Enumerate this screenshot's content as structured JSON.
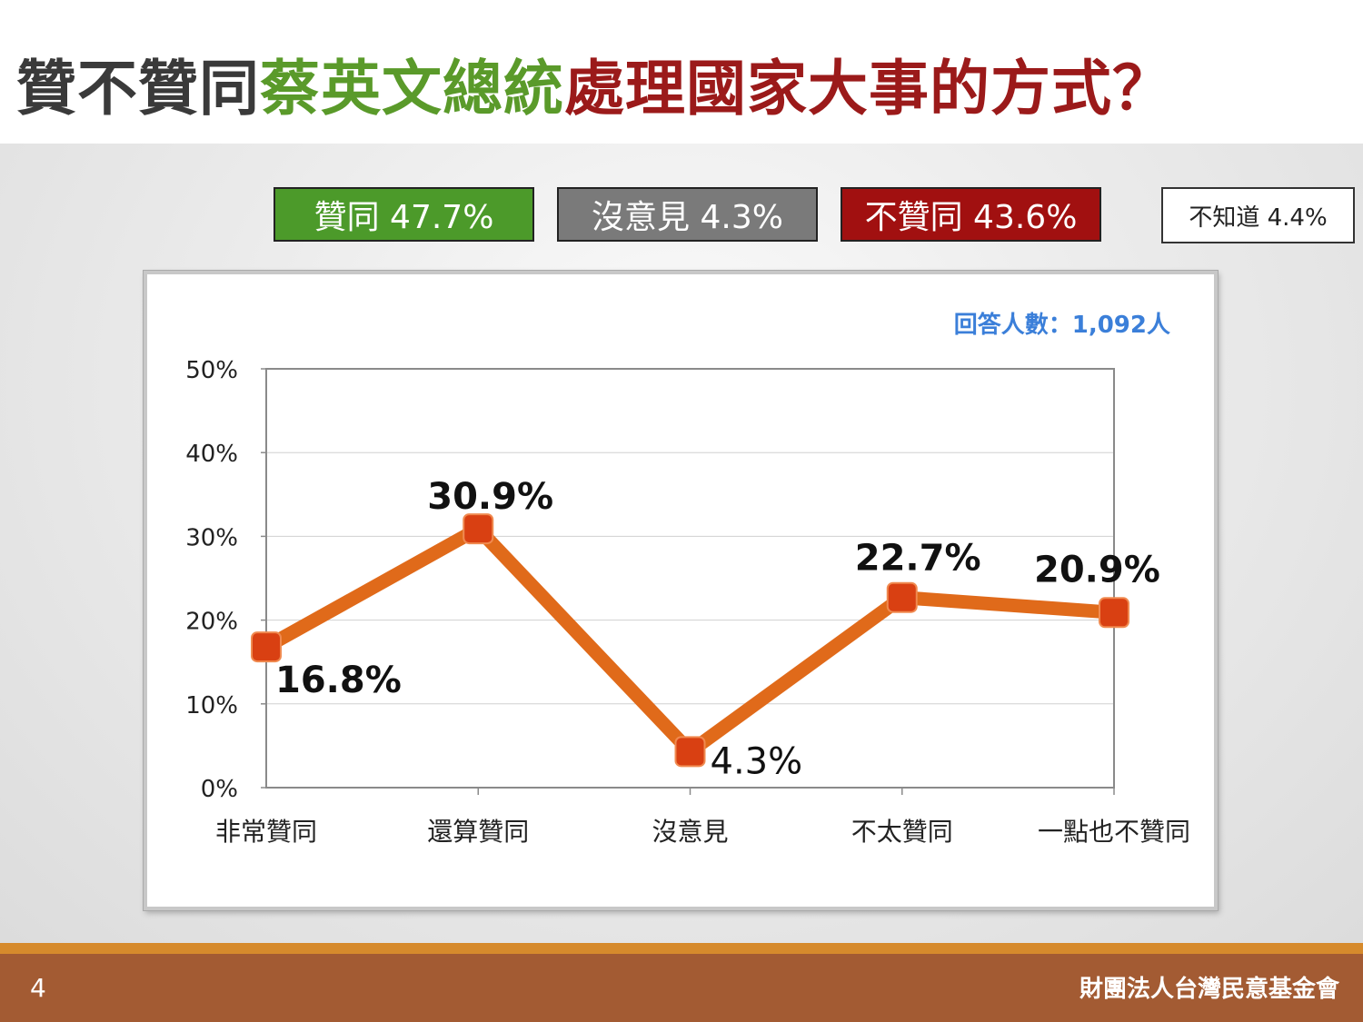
{
  "title": {
    "part1": "贊不贊同",
    "part2": "蔡英文總統",
    "part3": "處理國家大事的方式？",
    "color1": "#3a3a3a",
    "color2": "#5a9a2a",
    "color3": "#9b1a1a"
  },
  "summary": {
    "agree": {
      "label": "贊同 47.7%",
      "color": "#4c9a2a"
    },
    "no_opinion": {
      "label": "沒意見 4.3%",
      "color": "#7a7a7a"
    },
    "disagree": {
      "label": "不贊同 43.6%",
      "color": "#a11010"
    },
    "dont_know": {
      "label": "不知道 4.4%"
    }
  },
  "respondents": {
    "label": "回答人數：1,092人",
    "color": "#3b7fd9"
  },
  "chart_data": {
    "type": "line",
    "categories": [
      "非常贊同",
      "還算贊同",
      "沒意見",
      "不太贊同",
      "一點也不贊同"
    ],
    "values": [
      16.8,
      30.9,
      4.3,
      22.7,
      20.9
    ],
    "value_labels": [
      "16.8%",
      "30.9%",
      "4.3%",
      "22.7%",
      "20.9%"
    ],
    "y_ticks": [
      "0%",
      "10%",
      "20%",
      "30%",
      "40%",
      "50%"
    ],
    "ylim": [
      0,
      50
    ],
    "grid": true,
    "line_color": "#e06a1a",
    "marker_color": "#d94012"
  },
  "footer": {
    "page_number": "4",
    "organization": "財團法人台灣民意基金會"
  }
}
